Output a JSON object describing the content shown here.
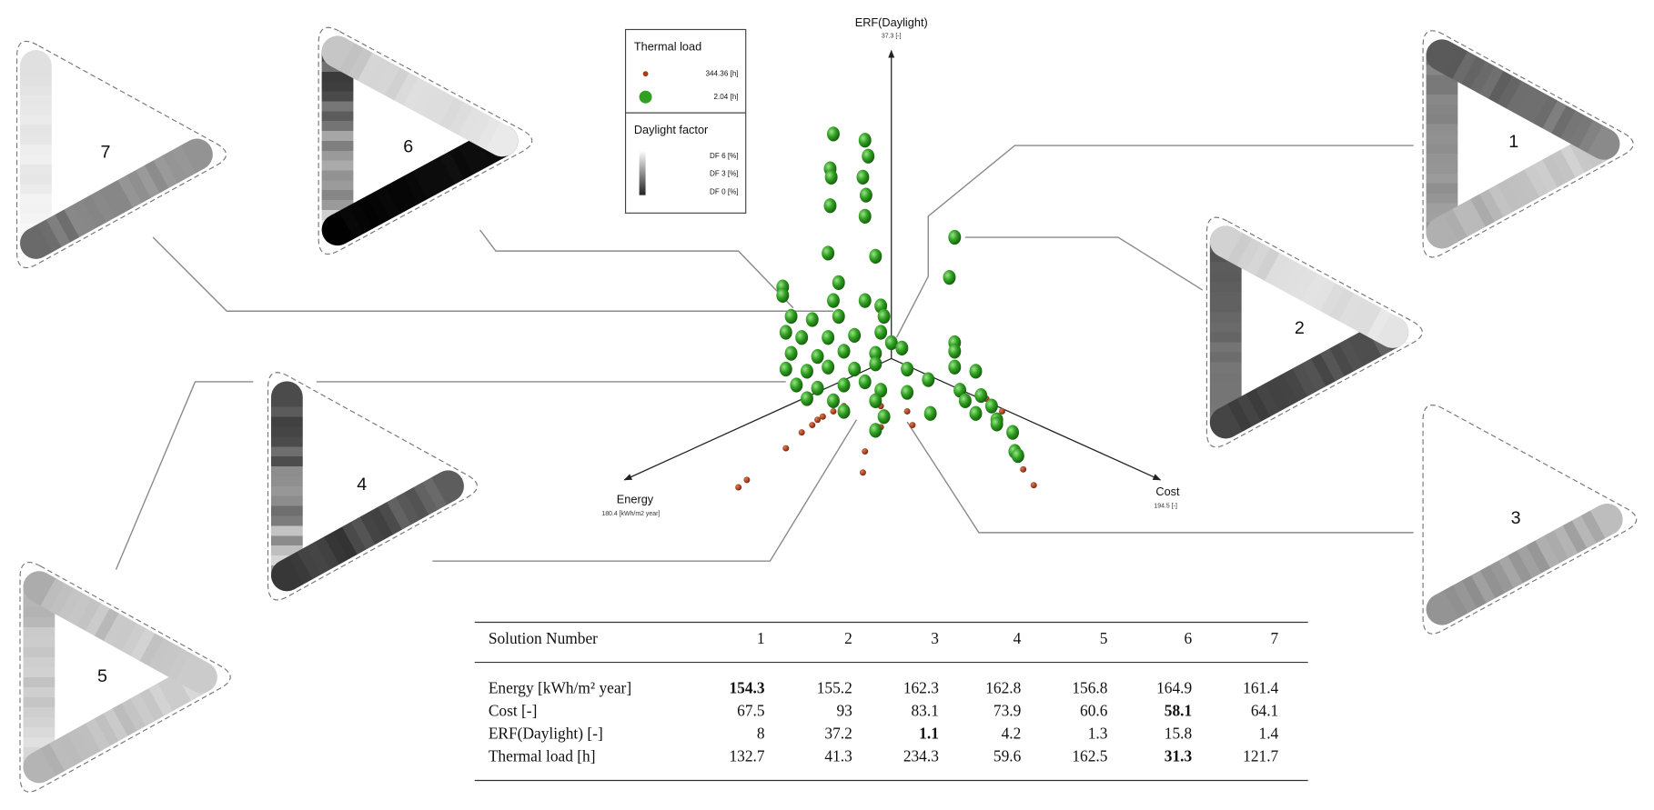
{
  "axes": {
    "vertical": {
      "label": "ERF(Daylight)",
      "max": "37.3 [-]"
    },
    "left": {
      "label": "Energy",
      "max": "180.4 [kWh/m2 year]"
    },
    "right": {
      "label": "Cost",
      "max": "194.5 [-]"
    }
  },
  "legend": {
    "thermal_title": "Thermal load",
    "thermal_items": [
      {
        "label": "344.36 [h]",
        "color": "#b03a10"
      },
      {
        "label": "2.04 [h]",
        "color": "#2fa020"
      }
    ],
    "daylight_title": "Daylight factor",
    "daylight_items": [
      "DF  6 [%]",
      "DF  3 [%]",
      "DF  0 [%]"
    ]
  },
  "solutions": [
    "1",
    "2",
    "3",
    "4",
    "5",
    "6",
    "7"
  ],
  "table": {
    "header": [
      "Solution Number",
      "1",
      "2",
      "3",
      "4",
      "5",
      "6",
      "7"
    ],
    "rows": [
      {
        "label": "Energy [kWh/m² year]",
        "values": [
          154.3,
          155.2,
          162.3,
          162.8,
          156.8,
          164.9,
          161.4
        ],
        "bold": 0
      },
      {
        "label": "Cost [-]",
        "values": [
          67.5,
          93,
          83.1,
          73.9,
          60.6,
          58.1,
          64.1
        ],
        "bold": 5
      },
      {
        "label": "ERF(Daylight) [-]",
        "values": [
          8,
          37.2,
          1.1,
          4.2,
          1.3,
          15.8,
          1.4
        ],
        "bold": 2
      },
      {
        "label": "Thermal load [h]",
        "values": [
          132.7,
          41.3,
          234.3,
          59.6,
          162.5,
          31.3,
          121.7
        ],
        "bold": 5
      }
    ]
  }
}
